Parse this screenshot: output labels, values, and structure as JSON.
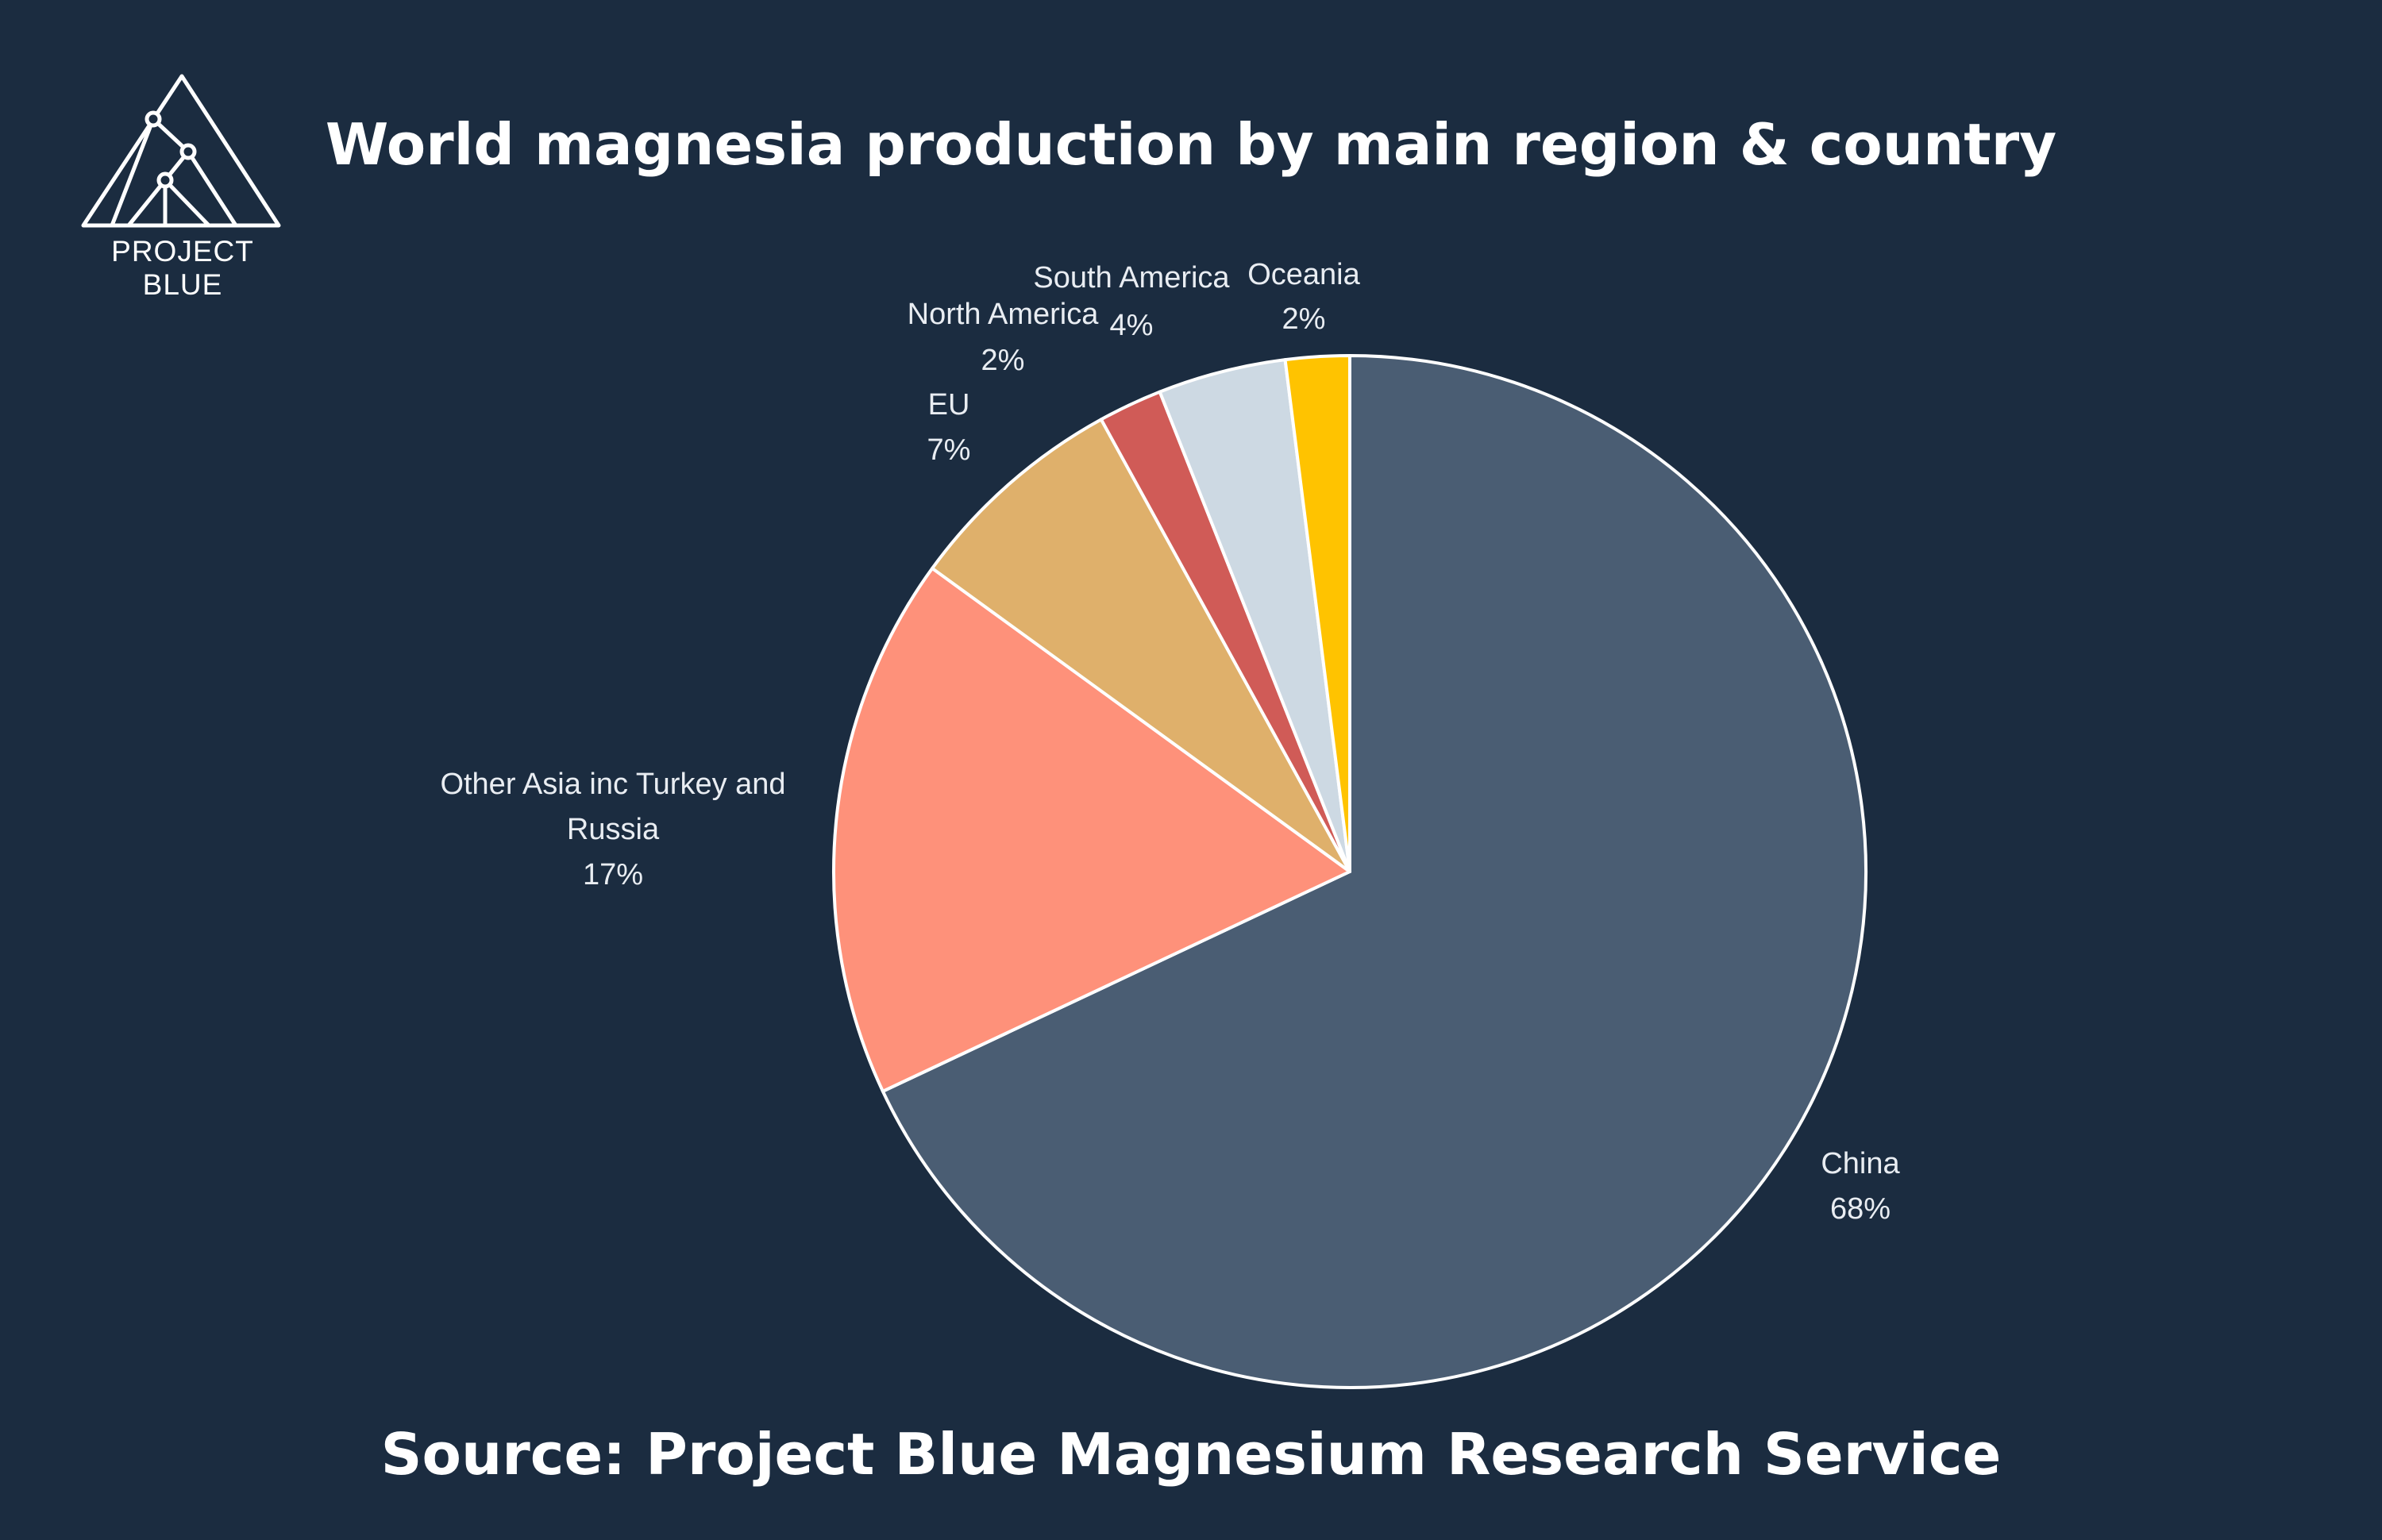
{
  "title": "World magnesia production by main region & country",
  "source": "Source: Project Blue Magnesium Research Service",
  "logo": {
    "text": "PROJECT BLUE"
  },
  "colors": {
    "background": "#1b2c40",
    "slice_border": "#ffffff"
  },
  "chart_data": {
    "type": "pie",
    "title": "World magnesia production by main region & country",
    "start": "12 o'clock",
    "direction": "clockwise",
    "slices": [
      {
        "label": "China",
        "value": 68,
        "display": "68%",
        "color": "#4a5d73"
      },
      {
        "label": "Other Asia inc Turkey and Russia",
        "label_lines": [
          "Other Asia inc Turkey and",
          "Russia"
        ],
        "value": 17,
        "display": "17%",
        "color": "#fe917a"
      },
      {
        "label": "EU",
        "value": 7,
        "display": "7%",
        "color": "#dfb06b"
      },
      {
        "label": "North America",
        "value": 2,
        "display": "2%",
        "color": "#d05b57"
      },
      {
        "label": "South America",
        "value": 4,
        "display": "4%",
        "color": "#cdd9e3"
      },
      {
        "label": "Oceania",
        "value": 2,
        "display": "2%",
        "color": "#ffc300"
      }
    ]
  }
}
